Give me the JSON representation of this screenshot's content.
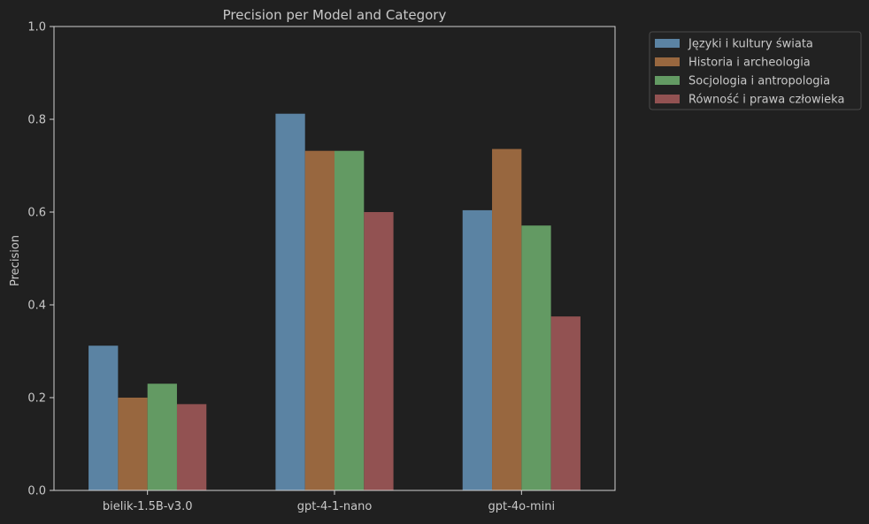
{
  "chart_data": {
    "type": "bar",
    "title": "Precision per Model and Category",
    "xlabel": "",
    "ylabel": "Precision",
    "ylim": [
      0,
      1.0
    ],
    "yticks": [
      "0.0",
      "0.2",
      "0.4",
      "0.6",
      "0.8",
      "1.0"
    ],
    "categories": [
      "bielik-1.5B-v3.0",
      "gpt-4-1-nano",
      "gpt-4o-mini"
    ],
    "grid": false,
    "legend_position": "outside-top-right",
    "series": [
      {
        "name": "Języki i kultury świata",
        "color": "#5b83a3",
        "values": [
          0.312,
          0.812,
          0.604
        ]
      },
      {
        "name": "Historia i archeologia",
        "color": "#98673f",
        "values": [
          0.2,
          0.732,
          0.736
        ]
      },
      {
        "name": "Socjologia i antropologia",
        "color": "#639a63",
        "values": [
          0.23,
          0.732,
          0.571
        ]
      },
      {
        "name": "Równość i prawa człowieka",
        "color": "#925252",
        "values": [
          0.186,
          0.6,
          0.375
        ]
      }
    ]
  },
  "colors": {
    "background": "#202020",
    "axis": "#d0d0d0",
    "text": "#c8c8c8"
  }
}
